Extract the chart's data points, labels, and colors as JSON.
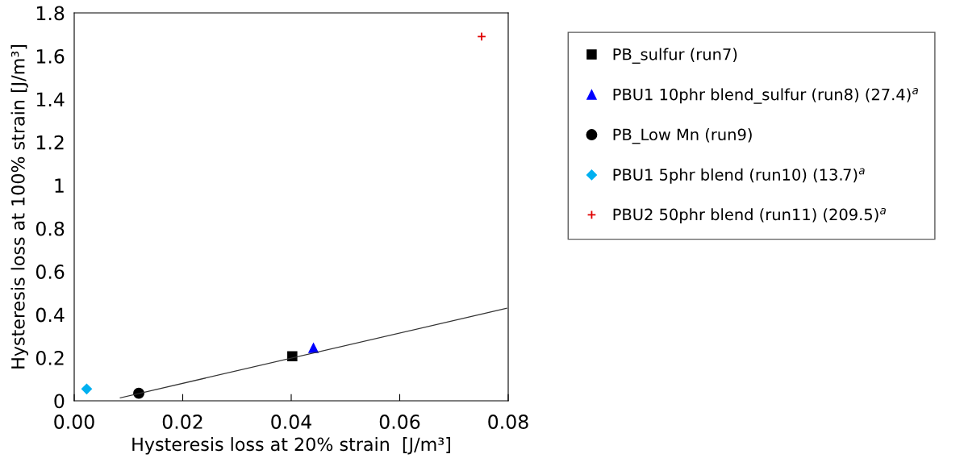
{
  "chart_data": {
    "type": "scatter",
    "xlabel": "Hysteresis loss at 20% strain  [J/m³]",
    "ylabel": "Hysteresis loss at 100% strain [J/m³]",
    "xlim": [
      0,
      0.08
    ],
    "ylim": [
      0,
      1.8
    ],
    "xticks": [
      {
        "value": 0,
        "label": "0.00"
      },
      {
        "value": 0.02,
        "label": "0.02"
      },
      {
        "value": 0.04,
        "label": "0.04"
      },
      {
        "value": 0.06,
        "label": "0.06"
      },
      {
        "value": 0.08,
        "label": "0.08"
      }
    ],
    "yticks": [
      0,
      0.2,
      0.4,
      0.6,
      0.8,
      1,
      1.2,
      1.4,
      1.6,
      1.8
    ],
    "grid": false,
    "legend": "right",
    "series": [
      {
        "name": "PB_sulfur (run7)",
        "color": "#000000",
        "marker": "square",
        "x": [
          0.0402
        ],
        "values": [
          0.207
        ]
      },
      {
        "name": "PBU1 10phr blend_sulfur (run8) (27.4)$^{a}$",
        "color": "#0000ff",
        "marker": "triangle",
        "x": [
          0.0441
        ],
        "values": [
          0.245
        ]
      },
      {
        "name": "PB_Low Mn (run9)",
        "color": "#000000",
        "marker": "circle",
        "x": [
          0.0119
        ],
        "values": [
          0.035
        ]
      },
      {
        "name": "PBU1 5phr blend (run10) (13.7)$^{a}$",
        "color": "#00b0f0",
        "marker": "diamond",
        "x": [
          0.0023
        ],
        "values": [
          0.055
        ]
      },
      {
        "name": "PBU2 50phr blend (run11) (209.5)$^{a}$",
        "color": "#e00000",
        "marker": "cross",
        "x": [
          0.0751
        ],
        "values": [
          1.69
        ]
      },
      {
        "type": "line",
        "color": "#333333",
        "marker": "none",
        "line_style": "solid",
        "x": [
          0.0085,
          0.0797
        ],
        "values": [
          0.014,
          0.429
        ]
      }
    ]
  }
}
